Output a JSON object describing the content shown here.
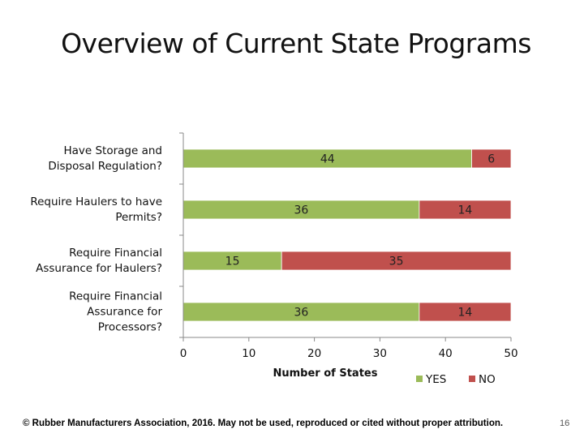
{
  "slide": {
    "title": "Overview of Current State Programs",
    "footer": "© Rubber Manufacturers Association, 2016.  May not be used, reproduced or cited without proper attribution.",
    "page_number": "16"
  },
  "colors": {
    "yes": "#9bbb59",
    "no": "#c0504d",
    "axis": "#888888"
  },
  "chart_data": {
    "type": "bar",
    "orientation": "horizontal",
    "stacked": true,
    "title": "",
    "xlabel": "Number of States",
    "ylabel": "",
    "xlim": [
      0,
      50
    ],
    "xticks": [
      0,
      10,
      20,
      30,
      40,
      50
    ],
    "grid": false,
    "legend_position": "bottom-right",
    "categories": [
      [
        "Have Storage and",
        "Disposal Regulation?"
      ],
      [
        "Require Haulers to have",
        "Permits?"
      ],
      [
        "Require Financial",
        "Assurance for Haulers?"
      ],
      [
        "Require Financial",
        "Assurance for",
        "Processors?"
      ]
    ],
    "series": [
      {
        "name": "YES",
        "values": [
          44,
          36,
          15,
          36
        ]
      },
      {
        "name": "NO",
        "values": [
          6,
          14,
          35,
          14
        ]
      }
    ]
  }
}
